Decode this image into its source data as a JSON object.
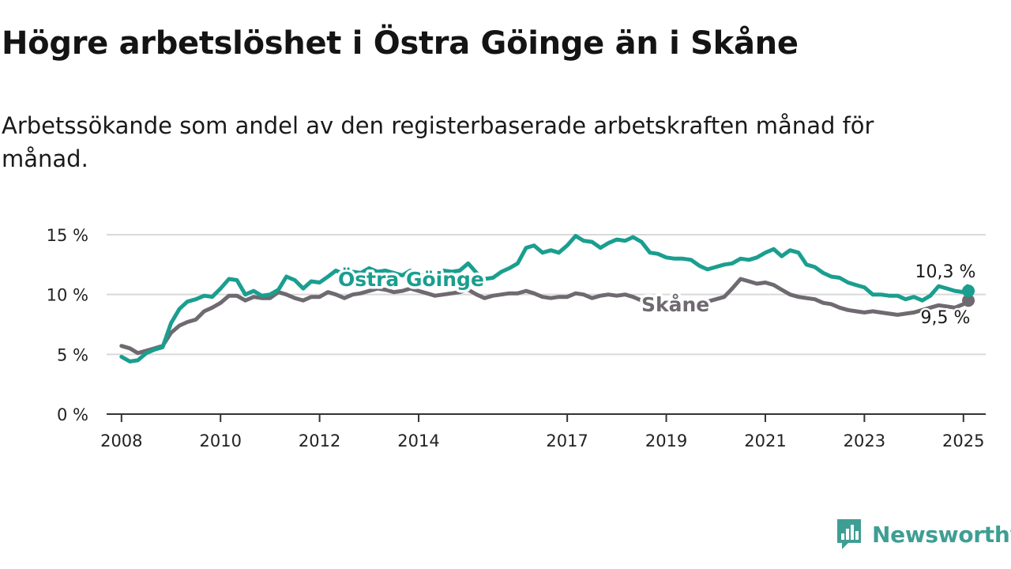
{
  "title": "Högre arbetslöshet i Östra Göinge än i Skåne",
  "subtitle": "Arbetssökande som andel av den registerbaserade arbetskraften månad för månad.",
  "brand": {
    "name": "Newsworthy",
    "icon": "newsworthy-logo-icon",
    "color": "#3f9e93"
  },
  "chart_data": {
    "type": "line",
    "xlabel": "",
    "ylabel": "",
    "ylim": [
      0,
      15
    ],
    "yticks": [
      0,
      5,
      10,
      15
    ],
    "ytick_labels": [
      "0 %",
      "5 %",
      "10 %",
      "15 %"
    ],
    "xlim": [
      2007.7,
      2025.45
    ],
    "xticks": [
      2008,
      2010,
      2012,
      2014,
      2017,
      2019,
      2021,
      2023,
      2025
    ],
    "xtick_labels": [
      "2008",
      "2010",
      "2012",
      "2014",
      "2017",
      "2019",
      "2021",
      "2023",
      "2025"
    ],
    "grid": true,
    "legend": "inline labels",
    "series": [
      {
        "name": "Östra Göinge",
        "color": "#1a9e8f",
        "end_label": "10,3 %",
        "points": [
          [
            2008.0,
            4.8
          ],
          [
            2008.17,
            4.4
          ],
          [
            2008.33,
            4.5
          ],
          [
            2008.5,
            5.1
          ],
          [
            2008.67,
            5.4
          ],
          [
            2008.83,
            5.6
          ],
          [
            2009.0,
            7.6
          ],
          [
            2009.17,
            8.8
          ],
          [
            2009.33,
            9.4
          ],
          [
            2009.5,
            9.6
          ],
          [
            2009.67,
            9.9
          ],
          [
            2009.83,
            9.8
          ],
          [
            2010.0,
            10.5
          ],
          [
            2010.17,
            11.3
          ],
          [
            2010.33,
            11.2
          ],
          [
            2010.5,
            10.0
          ],
          [
            2010.67,
            10.3
          ],
          [
            2010.83,
            9.9
          ],
          [
            2011.0,
            10.0
          ],
          [
            2011.17,
            10.4
          ],
          [
            2011.33,
            11.5
          ],
          [
            2011.5,
            11.2
          ],
          [
            2011.67,
            10.5
          ],
          [
            2011.83,
            11.1
          ],
          [
            2012.0,
            11.0
          ],
          [
            2012.17,
            11.5
          ],
          [
            2012.33,
            12.0
          ],
          [
            2012.5,
            11.7
          ],
          [
            2012.67,
            11.9
          ],
          [
            2012.83,
            11.8
          ],
          [
            2013.0,
            12.2
          ],
          [
            2013.17,
            11.9
          ],
          [
            2013.33,
            12.0
          ],
          [
            2013.5,
            11.8
          ],
          [
            2013.67,
            11.6
          ],
          [
            2013.83,
            12.0
          ],
          [
            2014.0,
            11.7
          ],
          [
            2014.17,
            11.6
          ],
          [
            2014.33,
            11.8
          ],
          [
            2014.5,
            12.0
          ],
          [
            2014.67,
            11.9
          ],
          [
            2014.83,
            12.0
          ],
          [
            2015.0,
            12.6
          ],
          [
            2015.17,
            11.8
          ],
          [
            2015.33,
            11.3
          ],
          [
            2015.5,
            11.4
          ],
          [
            2015.67,
            11.9
          ],
          [
            2015.83,
            12.2
          ],
          [
            2016.0,
            12.6
          ],
          [
            2016.17,
            13.9
          ],
          [
            2016.33,
            14.1
          ],
          [
            2016.5,
            13.5
          ],
          [
            2016.67,
            13.7
          ],
          [
            2016.83,
            13.5
          ],
          [
            2017.0,
            14.1
          ],
          [
            2017.17,
            14.9
          ],
          [
            2017.33,
            14.5
          ],
          [
            2017.5,
            14.4
          ],
          [
            2017.67,
            13.9
          ],
          [
            2017.83,
            14.3
          ],
          [
            2018.0,
            14.6
          ],
          [
            2018.17,
            14.5
          ],
          [
            2018.33,
            14.8
          ],
          [
            2018.5,
            14.4
          ],
          [
            2018.67,
            13.5
          ],
          [
            2018.83,
            13.4
          ],
          [
            2019.0,
            13.1
          ],
          [
            2019.17,
            13.0
          ],
          [
            2019.33,
            13.0
          ],
          [
            2019.5,
            12.9
          ],
          [
            2019.67,
            12.4
          ],
          [
            2019.83,
            12.1
          ],
          [
            2020.0,
            12.3
          ],
          [
            2020.17,
            12.5
          ],
          [
            2020.33,
            12.6
          ],
          [
            2020.5,
            13.0
          ],
          [
            2020.67,
            12.9
          ],
          [
            2020.83,
            13.1
          ],
          [
            2021.0,
            13.5
          ],
          [
            2021.17,
            13.8
          ],
          [
            2021.33,
            13.2
          ],
          [
            2021.5,
            13.7
          ],
          [
            2021.67,
            13.5
          ],
          [
            2021.83,
            12.5
          ],
          [
            2022.0,
            12.3
          ],
          [
            2022.17,
            11.8
          ],
          [
            2022.33,
            11.5
          ],
          [
            2022.5,
            11.4
          ],
          [
            2022.67,
            11.0
          ],
          [
            2022.83,
            10.8
          ],
          [
            2023.0,
            10.6
          ],
          [
            2023.17,
            10.0
          ],
          [
            2023.33,
            10.0
          ],
          [
            2023.5,
            9.9
          ],
          [
            2023.67,
            9.9
          ],
          [
            2023.83,
            9.6
          ],
          [
            2024.0,
            9.8
          ],
          [
            2024.17,
            9.5
          ],
          [
            2024.33,
            9.9
          ],
          [
            2024.5,
            10.7
          ],
          [
            2024.67,
            10.5
          ],
          [
            2024.83,
            10.3
          ],
          [
            2025.0,
            10.2
          ],
          [
            2025.08,
            10.7
          ],
          [
            2025.1,
            10.3
          ]
        ]
      },
      {
        "name": "Skåne",
        "color": "#6e6a70",
        "end_label": "9,5 %",
        "points": [
          [
            2008.0,
            5.7
          ],
          [
            2008.17,
            5.5
          ],
          [
            2008.33,
            5.1
          ],
          [
            2008.5,
            5.3
          ],
          [
            2008.67,
            5.5
          ],
          [
            2008.83,
            5.7
          ],
          [
            2009.0,
            6.8
          ],
          [
            2009.17,
            7.4
          ],
          [
            2009.33,
            7.7
          ],
          [
            2009.5,
            7.9
          ],
          [
            2009.67,
            8.6
          ],
          [
            2009.83,
            8.9
          ],
          [
            2010.0,
            9.3
          ],
          [
            2010.17,
            9.9
          ],
          [
            2010.33,
            9.9
          ],
          [
            2010.5,
            9.5
          ],
          [
            2010.67,
            9.8
          ],
          [
            2010.83,
            9.7
          ],
          [
            2011.0,
            9.7
          ],
          [
            2011.17,
            10.2
          ],
          [
            2011.33,
            10.0
          ],
          [
            2011.5,
            9.7
          ],
          [
            2011.67,
            9.5
          ],
          [
            2011.83,
            9.8
          ],
          [
            2012.0,
            9.8
          ],
          [
            2012.17,
            10.2
          ],
          [
            2012.33,
            10.0
          ],
          [
            2012.5,
            9.7
          ],
          [
            2012.67,
            10.0
          ],
          [
            2012.83,
            10.1
          ],
          [
            2013.0,
            10.3
          ],
          [
            2013.17,
            10.5
          ],
          [
            2013.33,
            10.4
          ],
          [
            2013.5,
            10.2
          ],
          [
            2013.67,
            10.3
          ],
          [
            2013.83,
            10.5
          ],
          [
            2014.0,
            10.3
          ],
          [
            2014.17,
            10.1
          ],
          [
            2014.33,
            9.9
          ],
          [
            2014.5,
            10.0
          ],
          [
            2014.67,
            10.1
          ],
          [
            2014.83,
            10.2
          ],
          [
            2015.0,
            10.4
          ],
          [
            2015.17,
            10.0
          ],
          [
            2015.33,
            9.7
          ],
          [
            2015.5,
            9.9
          ],
          [
            2015.67,
            10.0
          ],
          [
            2015.83,
            10.1
          ],
          [
            2016.0,
            10.1
          ],
          [
            2016.17,
            10.3
          ],
          [
            2016.33,
            10.1
          ],
          [
            2016.5,
            9.8
          ],
          [
            2016.67,
            9.7
          ],
          [
            2016.83,
            9.8
          ],
          [
            2017.0,
            9.8
          ],
          [
            2017.17,
            10.1
          ],
          [
            2017.33,
            10.0
          ],
          [
            2017.5,
            9.7
          ],
          [
            2017.67,
            9.9
          ],
          [
            2017.83,
            10.0
          ],
          [
            2018.0,
            9.9
          ],
          [
            2018.17,
            10.0
          ],
          [
            2018.33,
            9.8
          ],
          [
            2018.5,
            9.5
          ],
          [
            2018.67,
            9.4
          ],
          [
            2018.83,
            9.2
          ],
          [
            2019.0,
            9.3
          ],
          [
            2019.17,
            9.4
          ],
          [
            2019.33,
            9.4
          ],
          [
            2019.5,
            9.3
          ],
          [
            2019.67,
            9.2
          ],
          [
            2019.83,
            9.4
          ],
          [
            2020.0,
            9.6
          ],
          [
            2020.17,
            9.8
          ],
          [
            2020.33,
            10.5
          ],
          [
            2020.5,
            11.3
          ],
          [
            2020.67,
            11.1
          ],
          [
            2020.83,
            10.9
          ],
          [
            2021.0,
            11.0
          ],
          [
            2021.17,
            10.8
          ],
          [
            2021.33,
            10.4
          ],
          [
            2021.5,
            10.0
          ],
          [
            2021.67,
            9.8
          ],
          [
            2021.83,
            9.7
          ],
          [
            2022.0,
            9.6
          ],
          [
            2022.17,
            9.3
          ],
          [
            2022.33,
            9.2
          ],
          [
            2022.5,
            8.9
          ],
          [
            2022.67,
            8.7
          ],
          [
            2022.83,
            8.6
          ],
          [
            2023.0,
            8.5
          ],
          [
            2023.17,
            8.6
          ],
          [
            2023.33,
            8.5
          ],
          [
            2023.5,
            8.4
          ],
          [
            2023.67,
            8.3
          ],
          [
            2023.83,
            8.4
          ],
          [
            2024.0,
            8.5
          ],
          [
            2024.17,
            8.7
          ],
          [
            2024.33,
            8.9
          ],
          [
            2024.5,
            9.1
          ],
          [
            2024.67,
            9.0
          ],
          [
            2024.83,
            8.9
          ],
          [
            2025.0,
            9.2
          ],
          [
            2025.08,
            9.4
          ],
          [
            2025.1,
            9.5
          ]
        ]
      }
    ]
  }
}
